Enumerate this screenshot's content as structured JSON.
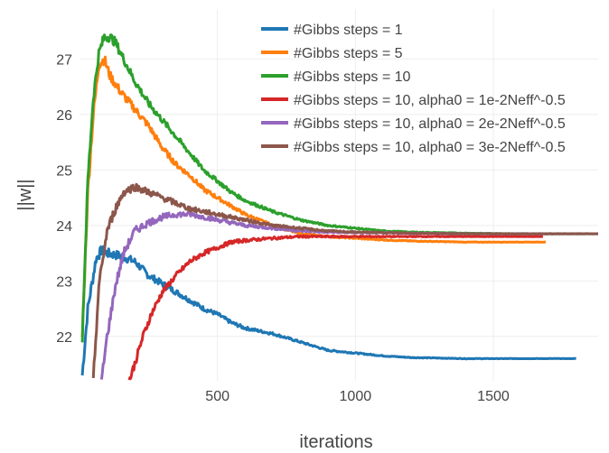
{
  "chart_data": {
    "type": "line",
    "xlabel": "iterations",
    "ylabel": "||w||",
    "xlim": [
      0,
      1880
    ],
    "ylim": [
      21.2,
      27.9
    ],
    "xticks": [
      500,
      1000,
      1500
    ],
    "yticks": [
      22,
      23,
      24,
      25,
      26,
      27
    ],
    "grid": true,
    "legend_position": "top-right",
    "series": [
      {
        "name": "#Gibbs steps = 1",
        "color": "#1f77b4",
        "x": [
          10,
          30,
          60,
          80,
          100,
          150,
          200,
          250,
          300,
          350,
          400,
          450,
          500,
          550,
          600,
          700,
          800,
          900,
          1000,
          1100,
          1200,
          1400,
          1600,
          1800
        ],
        "y": [
          21.3,
          22.5,
          23.4,
          23.55,
          23.5,
          23.45,
          23.35,
          23.1,
          22.95,
          22.8,
          22.65,
          22.5,
          22.4,
          22.25,
          22.15,
          22.05,
          21.9,
          21.75,
          21.7,
          21.65,
          21.62,
          21.6,
          21.6,
          21.6
        ]
      },
      {
        "name": "#Gibbs steps = 5",
        "color": "#ff7f0e",
        "x": [
          10,
          30,
          50,
          70,
          90,
          110,
          150,
          200,
          250,
          300,
          350,
          400,
          450,
          500,
          550,
          600,
          700,
          800,
          900,
          1000,
          1100,
          1200,
          1400,
          1600,
          1690
        ],
        "y": [
          22.0,
          24.6,
          26.0,
          26.9,
          27.0,
          26.7,
          26.4,
          26.1,
          25.8,
          25.4,
          25.1,
          24.9,
          24.65,
          24.5,
          24.35,
          24.2,
          24.0,
          23.85,
          23.8,
          23.77,
          23.74,
          23.72,
          23.7,
          23.7,
          23.7
        ]
      },
      {
        "name": "#Gibbs steps = 10",
        "color": "#2ca02c",
        "x": [
          10,
          30,
          50,
          70,
          90,
          110,
          130,
          160,
          200,
          250,
          300,
          350,
          400,
          450,
          500,
          550,
          600,
          700,
          800,
          900,
          1000,
          1100,
          1200,
          1400,
          1600,
          1880
        ],
        "y": [
          22.0,
          24.8,
          26.3,
          27.1,
          27.4,
          27.4,
          27.3,
          27.0,
          26.6,
          26.2,
          25.9,
          25.6,
          25.3,
          25.0,
          24.8,
          24.6,
          24.45,
          24.25,
          24.1,
          24.0,
          23.95,
          23.9,
          23.88,
          23.86,
          23.85,
          23.85
        ]
      },
      {
        "name": "#Gibbs steps = 10, alpha0 = 1e-2Neff^-0.5",
        "color": "#d62728",
        "x": [
          180,
          200,
          230,
          260,
          300,
          350,
          400,
          450,
          500,
          550,
          600,
          700,
          800,
          900,
          1000,
          1200,
          1400,
          1600,
          1680
        ],
        "y": [
          21.2,
          21.5,
          22.0,
          22.4,
          22.8,
          23.1,
          23.35,
          23.5,
          23.6,
          23.7,
          23.73,
          23.77,
          23.8,
          23.8,
          23.8,
          23.8,
          23.8,
          23.8,
          23.8
        ]
      },
      {
        "name": "#Gibbs steps = 10, alpha0 = 2e-2Neff^-0.5",
        "color": "#9467bd",
        "x": [
          80,
          100,
          130,
          160,
          200,
          250,
          300,
          350,
          400,
          450,
          500,
          550,
          600,
          700,
          800,
          900,
          1000,
          1200,
          1400,
          1600,
          1880
        ],
        "y": [
          21.2,
          22.0,
          22.9,
          23.5,
          23.9,
          24.05,
          24.15,
          24.2,
          24.2,
          24.15,
          24.1,
          24.05,
          24.0,
          23.95,
          23.9,
          23.88,
          23.87,
          23.86,
          23.85,
          23.85,
          23.85
        ]
      },
      {
        "name": "#Gibbs steps = 10, alpha0 = 3e-2Neff^-0.5",
        "color": "#8c564b",
        "x": [
          50,
          70,
          100,
          130,
          160,
          200,
          250,
          300,
          350,
          400,
          450,
          500,
          550,
          600,
          700,
          800,
          900,
          1000,
          1200,
          1400,
          1600,
          1880
        ],
        "y": [
          21.2,
          22.9,
          23.9,
          24.3,
          24.6,
          24.7,
          24.6,
          24.5,
          24.4,
          24.3,
          24.25,
          24.2,
          24.15,
          24.1,
          24.0,
          23.95,
          23.9,
          23.88,
          23.86,
          23.85,
          23.85,
          23.85
        ]
      }
    ]
  }
}
